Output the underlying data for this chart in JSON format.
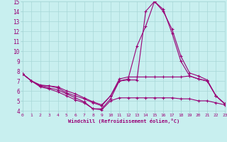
{
  "xlabel": "Windchill (Refroidissement éolien,°C)",
  "xlim": [
    0,
    23
  ],
  "ylim": [
    4,
    15
  ],
  "xticks": [
    0,
    1,
    2,
    3,
    4,
    5,
    6,
    7,
    8,
    9,
    10,
    11,
    12,
    13,
    14,
    15,
    16,
    17,
    18,
    19,
    20,
    21,
    22,
    23
  ],
  "yticks": [
    4,
    5,
    6,
    7,
    8,
    9,
    10,
    11,
    12,
    13,
    14,
    15
  ],
  "background_color": "#c8efef",
  "grid_color": "#a8d8d8",
  "line_color": "#990077",
  "line_width": 0.8,
  "marker": "+",
  "marker_size": 3.0,
  "lines": [
    {
      "x": [
        0,
        1,
        2,
        3,
        4,
        5,
        6,
        7,
        8,
        9,
        10,
        11,
        12,
        13,
        14,
        15,
        16,
        17,
        18,
        19,
        20,
        21,
        22,
        23
      ],
      "y": [
        7.7,
        7.0,
        6.5,
        6.3,
        6.1,
        5.7,
        5.3,
        4.9,
        4.2,
        4.2,
        5.2,
        7.0,
        7.1,
        7.1,
        14.0,
        15.0,
        14.0,
        12.2,
        9.5,
        7.8,
        7.5,
        7.1,
        5.5,
        4.7
      ]
    },
    {
      "x": [
        0,
        1,
        2,
        3,
        4,
        5,
        6,
        7,
        8,
        9,
        10,
        11,
        12,
        13,
        14,
        15,
        16,
        17,
        18,
        19,
        20,
        21,
        22,
        23
      ],
      "y": [
        7.7,
        7.0,
        6.5,
        6.5,
        6.3,
        5.8,
        5.5,
        5.2,
        4.8,
        4.5,
        5.5,
        7.0,
        7.2,
        10.5,
        12.5,
        15.0,
        14.2,
        11.8,
        9.0,
        7.5,
        7.2,
        7.0,
        5.5,
        4.7
      ]
    },
    {
      "x": [
        0,
        1,
        2,
        3,
        4,
        5,
        6,
        7,
        8,
        9,
        10,
        11,
        12,
        13,
        14,
        15,
        16,
        17,
        18,
        19,
        20,
        21,
        22,
        23
      ],
      "y": [
        7.7,
        7.0,
        6.6,
        6.5,
        6.4,
        6.0,
        5.7,
        5.3,
        4.9,
        4.6,
        5.5,
        7.2,
        7.4,
        7.4,
        7.4,
        7.4,
        7.4,
        7.4,
        7.4,
        7.5,
        7.2,
        7.0,
        5.5,
        4.7
      ]
    },
    {
      "x": [
        0,
        1,
        2,
        3,
        4,
        5,
        6,
        7,
        8,
        9,
        10,
        11,
        12,
        13,
        14,
        15,
        16,
        17,
        18,
        19,
        20,
        21,
        22,
        23
      ],
      "y": [
        7.7,
        7.0,
        6.4,
        6.2,
        5.9,
        5.5,
        5.1,
        4.8,
        4.2,
        4.1,
        5.0,
        5.3,
        5.3,
        5.3,
        5.3,
        5.3,
        5.3,
        5.3,
        5.2,
        5.2,
        5.0,
        5.0,
        4.8,
        4.6
      ]
    }
  ]
}
